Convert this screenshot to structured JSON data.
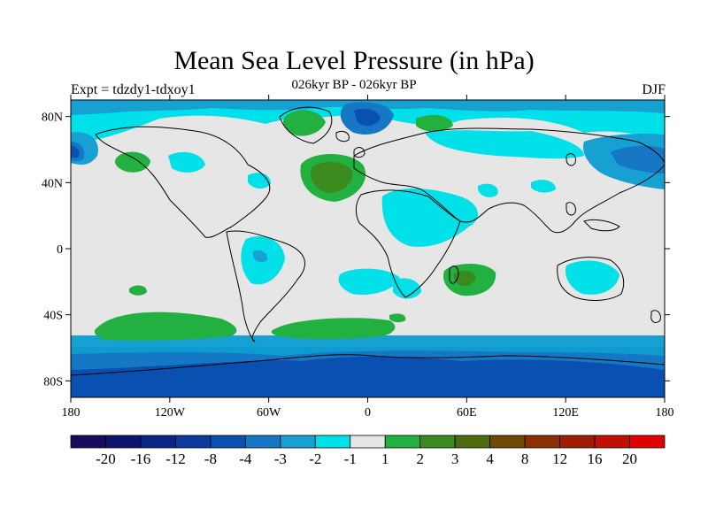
{
  "header": {
    "title": "Mean Sea Level Pressure (in hPa)",
    "subtitle": "026kyr BP - 026kyr BP",
    "left_label": "Expt = tdzdy1-tdxoy1",
    "right_label": "DJF"
  },
  "map": {
    "projection": "cylindrical-equidistant",
    "lon_range": [
      -180,
      180
    ],
    "lat_range": [
      -90,
      90
    ],
    "lat_ticks": [
      {
        "value": 80,
        "label": "80N"
      },
      {
        "value": 40,
        "label": "40N"
      },
      {
        "value": 0,
        "label": "0"
      },
      {
        "value": -40,
        "label": "40S"
      },
      {
        "value": -80,
        "label": "80S"
      }
    ],
    "lon_ticks": [
      {
        "value": -180,
        "label": "180"
      },
      {
        "value": -120,
        "label": "120W"
      },
      {
        "value": -60,
        "label": "60W"
      },
      {
        "value": 0,
        "label": "0"
      },
      {
        "value": 60,
        "label": "60E"
      },
      {
        "value": 120,
        "label": "120E"
      },
      {
        "value": 180,
        "label": "180"
      }
    ],
    "background_color": "#e6e6e6"
  },
  "colorbar": {
    "colors": [
      "#1a0a5c",
      "#0d1470",
      "#0a2585",
      "#0a3a9c",
      "#0a50b0",
      "#1677c4",
      "#17a0d2",
      "#00e0e8",
      "#e6e6e6",
      "#22b040",
      "#3a8a1e",
      "#4e6a0e",
      "#6c4a06",
      "#8c3004",
      "#a01c04",
      "#be1004",
      "#e00000"
    ],
    "labels": [
      "-20",
      "-16",
      "-12",
      "-8",
      "-4",
      "-3",
      "-2",
      "-1",
      "1",
      "2",
      "3",
      "4",
      "8",
      "12",
      "16",
      "20"
    ]
  },
  "chart_data": {
    "type": "heatmap",
    "title": "Mean Sea Level Pressure (in hPa)",
    "subtitle": "026kyr BP - 026kyr BP",
    "season": "DJF",
    "experiment": "Expt = tdzdy1-tdxoy1",
    "xlim": [
      -180,
      180
    ],
    "ylim": [
      -90,
      90
    ],
    "contour_levels": [
      -20,
      -16,
      -12,
      -8,
      -4,
      -3,
      -2,
      -1,
      1,
      2,
      3,
      4,
      8,
      12,
      16,
      20
    ],
    "regions": [
      {
        "name": "southern-ocean-band-1",
        "lat_band": [
          -63,
          -56
        ],
        "value": -2
      },
      {
        "name": "southern-ocean-band-2",
        "lat_band": [
          -70,
          -63
        ],
        "value": -4
      },
      {
        "name": "antarctic-band",
        "lat_band": [
          -90,
          -70
        ],
        "value": -8
      },
      {
        "name": "south-pacific-high",
        "center": [
          -128,
          -47
        ],
        "value": 2
      },
      {
        "name": "south-atlantic-high",
        "center": [
          -2,
          -50
        ],
        "value": 2
      },
      {
        "name": "madagascar-high",
        "center": [
          60,
          -22
        ],
        "value": 3
      },
      {
        "name": "north-atlantic-high",
        "center": [
          -22,
          46
        ],
        "value": 3
      },
      {
        "name": "north-pacific-high",
        "center": [
          -168,
          40
        ],
        "value": 2
      },
      {
        "name": "greenland-high",
        "center": [
          -30,
          77
        ],
        "value": 2
      },
      {
        "name": "arctic-low",
        "center": [
          5,
          80
        ],
        "value": -3
      },
      {
        "name": "siberia-low",
        "center": [
          150,
          50
        ],
        "value": -4
      },
      {
        "name": "africa-arabia-low",
        "center": [
          30,
          15
        ],
        "value": -1
      },
      {
        "name": "south-america-low",
        "center": [
          -62,
          -8
        ],
        "value": -2
      },
      {
        "name": "australia-low",
        "center": [
          133,
          -27
        ],
        "value": -1
      }
    ]
  }
}
